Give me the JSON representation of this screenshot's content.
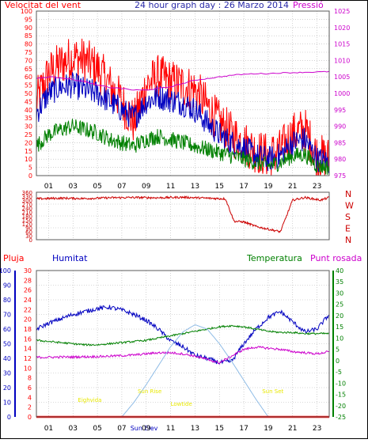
{
  "header": {
    "title": "24 hour graph day : 26 Marzo 2014",
    "left_label": "Velocitat del vent",
    "right_label": "Pressió"
  },
  "legend2": {
    "pluja": "Pluja",
    "humitat": "Humitat",
    "temperatura": "Temperatura",
    "punt_rosada": "Punt rosada"
  },
  "colors": {
    "frame": "#5a5a5a",
    "grid": "#b4b4b4",
    "red": "#ff0000",
    "darkred": "#cc0000",
    "blue": "#0000c0",
    "green": "#008000",
    "magenta": "#cc00cc",
    "title_blue": "#2a2aa8",
    "sun": "#8fbce6",
    "yellow": "#e8e800"
  },
  "x_ticks": [
    "01",
    "03",
    "05",
    "07",
    "09",
    "11",
    "13",
    "15",
    "17",
    "19",
    "21",
    "23"
  ],
  "chart_data": [
    {
      "type": "line",
      "title": "24 hour graph day : 26 Marzo 2014",
      "ylabel": "Velocitat del vent",
      "y2label": "Pressió",
      "ylim": [
        0,
        100
      ],
      "y2lim": [
        975,
        1025
      ],
      "yticks": [
        0,
        5,
        10,
        15,
        20,
        25,
        30,
        35,
        40,
        45,
        50,
        55,
        60,
        65,
        70,
        75,
        80,
        85,
        90,
        95,
        100
      ],
      "y2ticks": [
        975,
        980,
        985,
        990,
        995,
        1000,
        1005,
        1010,
        1015,
        1020,
        1025
      ],
      "x_hours": [
        0,
        1,
        2,
        3,
        4,
        5,
        6,
        7,
        8,
        9,
        10,
        11,
        12,
        13,
        14,
        15,
        16,
        17,
        18,
        19,
        20,
        21,
        22,
        23,
        24
      ],
      "series": [
        {
          "color": "#ff0000",
          "axis": "left",
          "values": [
            45,
            62,
            68,
            72,
            70,
            65,
            55,
            45,
            32,
            55,
            60,
            57,
            55,
            52,
            42,
            32,
            25,
            20,
            15,
            12,
            15,
            25,
            28,
            12,
            10
          ]
        },
        {
          "color": "#0000c0",
          "axis": "left",
          "values": [
            38,
            50,
            54,
            55,
            52,
            50,
            45,
            40,
            35,
            45,
            48,
            46,
            44,
            40,
            32,
            25,
            20,
            17,
            12,
            10,
            12,
            20,
            22,
            10,
            8
          ]
        },
        {
          "color": "#008000",
          "axis": "left",
          "values": [
            18,
            25,
            28,
            30,
            28,
            26,
            22,
            20,
            18,
            22,
            24,
            22,
            20,
            18,
            16,
            14,
            12,
            10,
            8,
            6,
            8,
            12,
            13,
            6,
            5
          ]
        },
        {
          "color": "#cc00cc",
          "axis": "right",
          "values": [
            1004.5,
            1005,
            1004.8,
            1004.2,
            1003.5,
            1002.5,
            1001.8,
            1001.5,
            1001,
            1001,
            1001.5,
            1002,
            1003,
            1004,
            1004.5,
            1005,
            1005.5,
            1005.8,
            1006,
            1006,
            1006.2,
            1006.3,
            1006.4,
            1006.5,
            1006.6
          ]
        }
      ]
    },
    {
      "type": "line",
      "ylim": [
        0,
        360
      ],
      "yticks": [
        0,
        30,
        60,
        90,
        120,
        150,
        180,
        210,
        240,
        270,
        300,
        330,
        360
      ],
      "direction_labels": [
        "N",
        "W",
        "S",
        "E",
        "N"
      ],
      "x_hours": [
        0,
        2,
        4,
        6,
        8,
        10,
        12,
        14,
        15.5,
        16.2,
        17,
        18,
        19,
        20,
        20.5,
        21,
        22,
        23.3,
        24
      ],
      "series": [
        {
          "color": "#cc0000",
          "values": [
            310,
            315,
            312,
            318,
            320,
            318,
            322,
            315,
            310,
            140,
            135,
            100,
            80,
            60,
            180,
            300,
            320,
            300,
            320
          ]
        }
      ]
    },
    {
      "type": "line",
      "ylabel": "Pluja",
      "ylim": [
        0,
        100
      ],
      "yticks": [
        0,
        10,
        20,
        30,
        40,
        50,
        60,
        70,
        80,
        90,
        100
      ],
      "mid_ticks": [
        0,
        2,
        4,
        6,
        8,
        10,
        12,
        14,
        16,
        18,
        20,
        22,
        24,
        26,
        28,
        30
      ],
      "y2lim": [
        -25,
        40
      ],
      "y2ticks": [
        -25,
        -20,
        -15,
        -10,
        -5,
        0,
        5,
        10,
        15,
        20,
        25,
        30,
        35,
        40
      ],
      "x_hours": [
        0,
        1,
        2,
        3,
        4,
        5,
        6,
        7,
        8,
        9,
        10,
        11,
        12,
        13,
        14,
        15,
        16,
        17,
        18,
        19,
        20,
        21,
        22,
        23,
        24
      ],
      "annotations": [
        "Sun Rise",
        "Sun Set",
        "Sun Elev",
        "Eighvida",
        "Lowtide"
      ],
      "series": [
        {
          "name": "Humitat",
          "color": "#0000c0",
          "axis": "left",
          "values": [
            60,
            64,
            67,
            70,
            72,
            74,
            75,
            73,
            70,
            66,
            60,
            52,
            48,
            42,
            40,
            37,
            38,
            50,
            60,
            68,
            72,
            65,
            58,
            60,
            70
          ]
        },
        {
          "name": "Temperatura",
          "color": "#008000",
          "axis": "right",
          "values": [
            9,
            8.5,
            8,
            7.5,
            7,
            7,
            7.5,
            8,
            8.5,
            9,
            10,
            11,
            12,
            13,
            14,
            15,
            15.5,
            15,
            14,
            13,
            12.5,
            12.5,
            12,
            12,
            12
          ]
        },
        {
          "name": "Punt rosada",
          "color": "#cc00cc",
          "axis": "right",
          "values": [
            1.5,
            1.5,
            1.6,
            1.6,
            1.7,
            1.8,
            2,
            2.2,
            2.5,
            3,
            3.5,
            3.5,
            3,
            2,
            0.5,
            -1,
            2,
            5,
            6,
            5.5,
            5,
            4,
            3.5,
            3,
            4
          ]
        },
        {
          "color": "#8fbce6",
          "axis": "left",
          "values": [
            0,
            0,
            0,
            0,
            0,
            0,
            0,
            0,
            10,
            22,
            35,
            48,
            58,
            63,
            60,
            50,
            38,
            25,
            12,
            0,
            0,
            0,
            0,
            0,
            0
          ]
        },
        {
          "color": "#ff0000",
          "axis": "left",
          "values": [
            0,
            0,
            0,
            0,
            0,
            0,
            0,
            0,
            0,
            0,
            0,
            0,
            0,
            0,
            0,
            0,
            0,
            0,
            0,
            0,
            0,
            0,
            0,
            0,
            0
          ]
        }
      ]
    }
  ]
}
